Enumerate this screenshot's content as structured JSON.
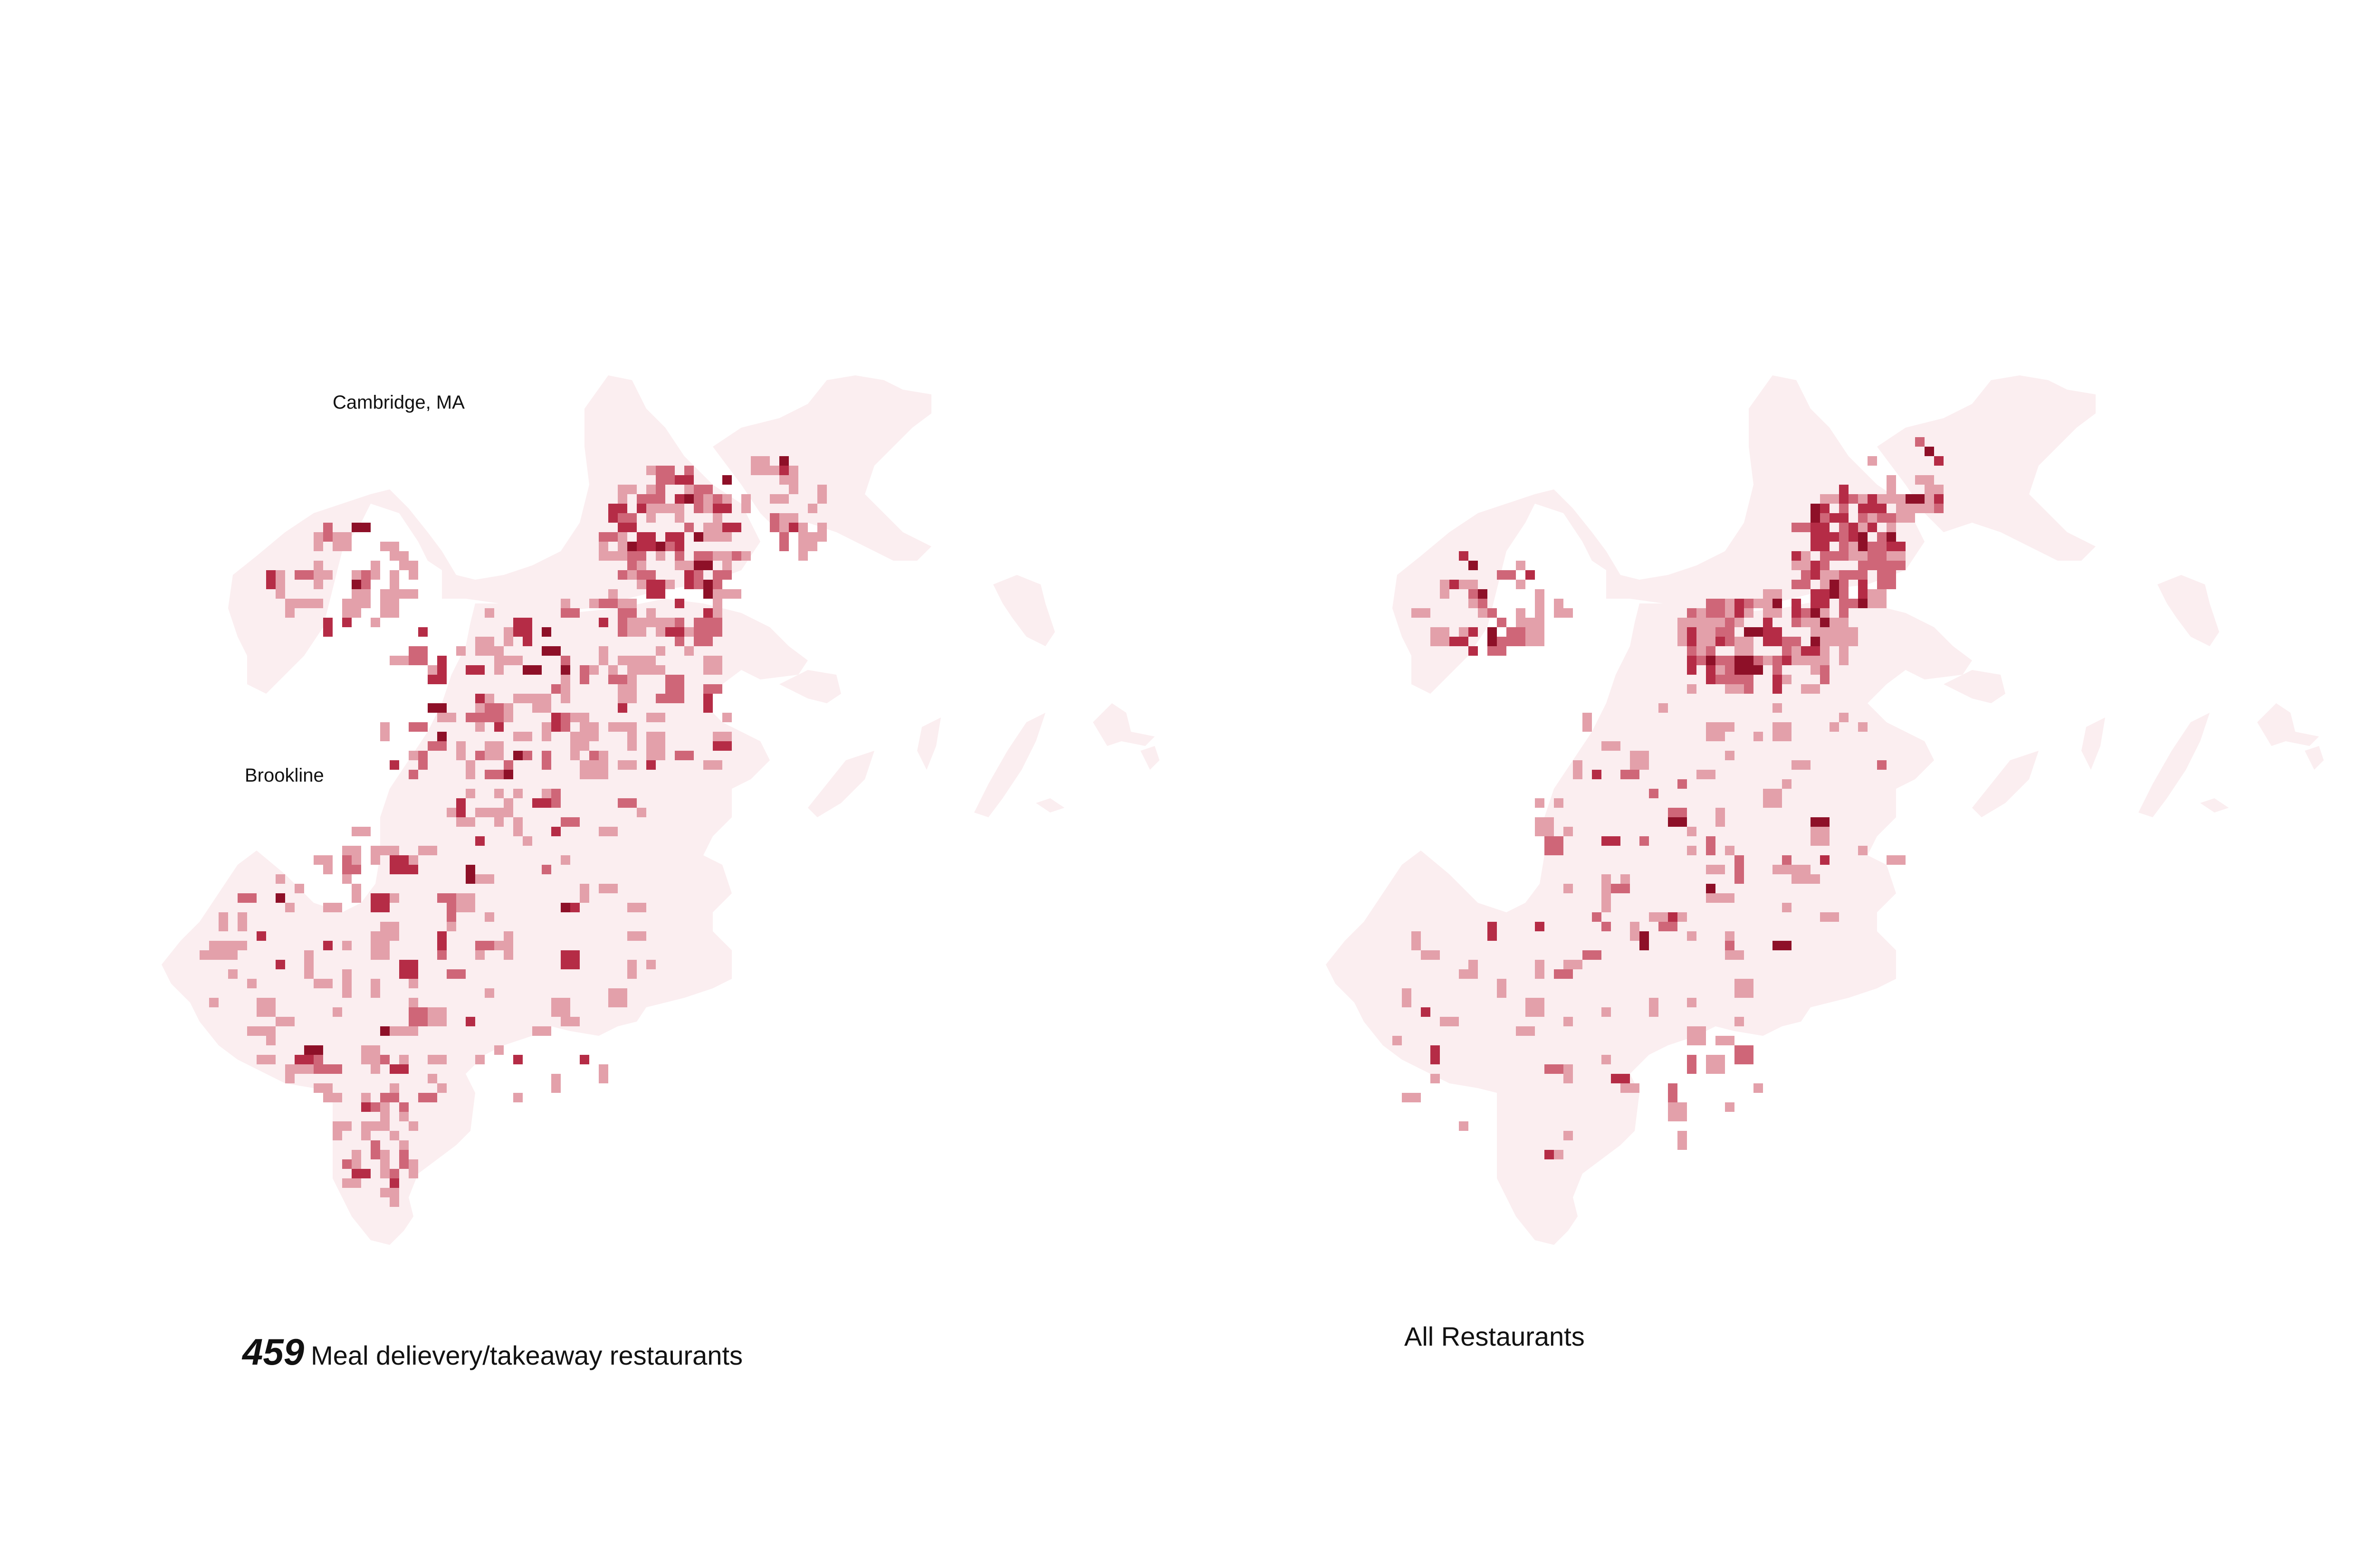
{
  "labels": {
    "cambridge": "Cambridge, MA",
    "brookline": "Brookline"
  },
  "captions": {
    "left_count": "459",
    "left_text": "Meal delievery/takeaway restaurants",
    "right_text": "All Restaurants"
  },
  "colors": {
    "land": "#fbeef0",
    "density_low": "#e3a0aa",
    "density_mid": "#cf6678",
    "density_high": "#b52c46",
    "density_max": "#8e1028"
  },
  "map_data": {
    "left": {
      "name": "Meal delivery/takeaway restaurants"
    },
    "right": {
      "name": "All Restaurants"
    }
  }
}
